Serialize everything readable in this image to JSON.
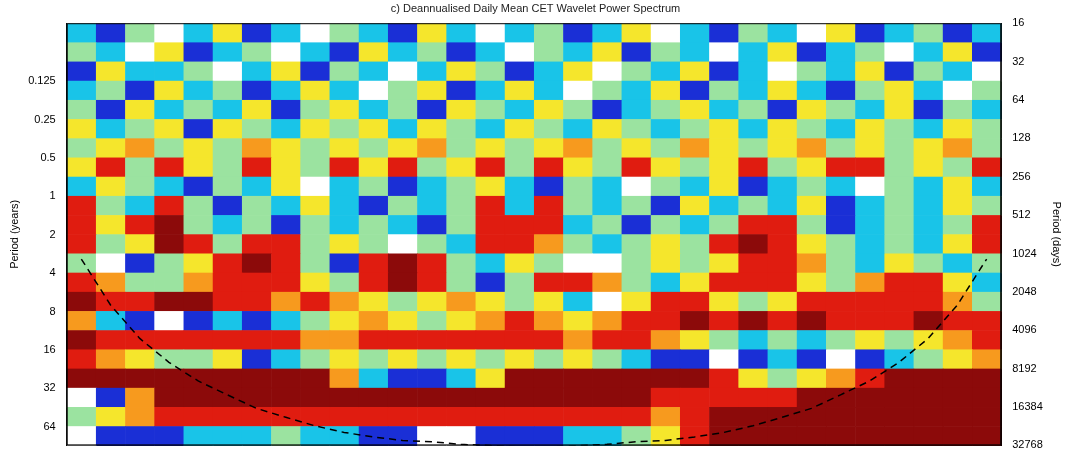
{
  "chart_data": {
    "type": "heatmap",
    "title": "c) Deannualised Daily Mean CET Wavelet Power Spectrum",
    "y_label": "Period (years)",
    "y2_label": "Period (days)",
    "log": "y",
    "grid": false,
    "tick_labels": "y",
    "xlim": [
      0,
      32
    ],
    "ylim": [
      0.04381,
      89.71
    ],
    "yticks": [
      0.125,
      0.25,
      0.5,
      1,
      2,
      4,
      8,
      16,
      32,
      64
    ],
    "y2lim": [
      16,
      32768
    ],
    "y2ticks": [
      16,
      32,
      64,
      128,
      256,
      512,
      1024,
      2048,
      4096,
      8192,
      16384,
      32768
    ],
    "x_edges": [
      0,
      1,
      2,
      3,
      4,
      5,
      6,
      7,
      8,
      9,
      10,
      11,
      12,
      13,
      14,
      15,
      16,
      17,
      18,
      19,
      20,
      21,
      22,
      23,
      24,
      25,
      26,
      27,
      28,
      29,
      30,
      31,
      32
    ],
    "y_edges": [
      0.04381,
      0.06195,
      0.08761,
      0.1239,
      0.1752,
      0.2478,
      0.3504,
      0.4956,
      0.7009,
      0.9912,
      1.402,
      1.982,
      2.804,
      3.965,
      5.607,
      7.93,
      11.21,
      15.86,
      22.43,
      31.72,
      44.86,
      63.44,
      89.71
    ],
    "clim": [
      0,
      7
    ],
    "colors": [
      "#ffffff",
      "#1a2fd6",
      "#19c4e8",
      "#9be3a0",
      "#f5e62c",
      "#f79a1e",
      "#e01c10",
      "#8c0a0a"
    ],
    "cells": [
      [
        2,
        1,
        3,
        0,
        2,
        4,
        1,
        2,
        0,
        3,
        2,
        1,
        4,
        2,
        0,
        2,
        3,
        1,
        2,
        4,
        0,
        2,
        1,
        3,
        2,
        0,
        4,
        1,
        2,
        3,
        1,
        2
      ],
      [
        3,
        2,
        0,
        4,
        1,
        2,
        3,
        0,
        2,
        1,
        4,
        2,
        3,
        1,
        2,
        0,
        3,
        2,
        4,
        1,
        3,
        2,
        0,
        2,
        4,
        1,
        2,
        3,
        0,
        2,
        4,
        1
      ],
      [
        1,
        4,
        2,
        2,
        3,
        0,
        2,
        4,
        1,
        3,
        2,
        0,
        2,
        4,
        3,
        1,
        2,
        4,
        0,
        3,
        2,
        4,
        1,
        2,
        0,
        3,
        2,
        4,
        1,
        3,
        2,
        0
      ],
      [
        2,
        3,
        1,
        4,
        2,
        3,
        1,
        2,
        4,
        2,
        0,
        3,
        4,
        1,
        2,
        4,
        2,
        0,
        3,
        2,
        4,
        1,
        3,
        2,
        4,
        2,
        1,
        3,
        4,
        2,
        0,
        3
      ],
      [
        3,
        1,
        4,
        2,
        3,
        2,
        4,
        1,
        3,
        4,
        2,
        3,
        1,
        4,
        3,
        2,
        4,
        3,
        1,
        2,
        3,
        4,
        2,
        3,
        1,
        4,
        3,
        2,
        4,
        1,
        3,
        2
      ],
      [
        4,
        2,
        3,
        4,
        1,
        4,
        3,
        2,
        4,
        3,
        4,
        2,
        4,
        3,
        2,
        4,
        3,
        2,
        4,
        3,
        2,
        3,
        4,
        2,
        4,
        3,
        2,
        4,
        3,
        2,
        4,
        3
      ],
      [
        3,
        4,
        5,
        3,
        4,
        3,
        5,
        4,
        3,
        4,
        3,
        4,
        5,
        3,
        4,
        3,
        4,
        5,
        3,
        4,
        3,
        5,
        4,
        3,
        4,
        5,
        3,
        4,
        3,
        4,
        5,
        3
      ],
      [
        4,
        6,
        3,
        6,
        4,
        3,
        6,
        4,
        3,
        6,
        4,
        6,
        3,
        4,
        6,
        3,
        6,
        4,
        3,
        6,
        4,
        3,
        4,
        6,
        3,
        4,
        6,
        6,
        3,
        4,
        3,
        6
      ],
      [
        2,
        4,
        3,
        2,
        1,
        3,
        2,
        4,
        0,
        2,
        3,
        1,
        2,
        3,
        4,
        2,
        1,
        3,
        2,
        0,
        3,
        2,
        4,
        1,
        2,
        3,
        2,
        0,
        3,
        2,
        4,
        2
      ],
      [
        6,
        3,
        2,
        6,
        3,
        1,
        3,
        2,
        4,
        2,
        1,
        3,
        2,
        3,
        6,
        2,
        6,
        3,
        2,
        3,
        1,
        4,
        2,
        3,
        2,
        4,
        1,
        2,
        3,
        2,
        4,
        3
      ],
      [
        6,
        4,
        6,
        7,
        3,
        2,
        3,
        1,
        3,
        2,
        3,
        2,
        1,
        3,
        6,
        6,
        6,
        2,
        3,
        1,
        3,
        2,
        3,
        6,
        6,
        3,
        1,
        2,
        3,
        2,
        3,
        6
      ],
      [
        6,
        3,
        4,
        7,
        6,
        3,
        6,
        6,
        3,
        4,
        3,
        0,
        3,
        2,
        6,
        6,
        5,
        3,
        2,
        3,
        4,
        3,
        6,
        7,
        6,
        4,
        3,
        2,
        3,
        2,
        4,
        6
      ],
      [
        3,
        0,
        1,
        3,
        4,
        6,
        7,
        6,
        3,
        1,
        6,
        7,
        6,
        3,
        2,
        4,
        3,
        0,
        0,
        3,
        4,
        3,
        4,
        6,
        6,
        5,
        3,
        2,
        4,
        3,
        2,
        3
      ],
      [
        6,
        5,
        3,
        3,
        5,
        6,
        6,
        6,
        4,
        3,
        6,
        7,
        6,
        3,
        1,
        3,
        6,
        6,
        5,
        3,
        2,
        4,
        6,
        6,
        6,
        4,
        3,
        5,
        6,
        6,
        4,
        2
      ],
      [
        7,
        6,
        6,
        7,
        7,
        6,
        6,
        5,
        6,
        5,
        4,
        3,
        4,
        5,
        4,
        3,
        4,
        2,
        0,
        4,
        6,
        6,
        4,
        3,
        4,
        6,
        6,
        6,
        6,
        6,
        5,
        3
      ],
      [
        5,
        2,
        1,
        0,
        1,
        2,
        1,
        2,
        3,
        4,
        5,
        4,
        3,
        4,
        5,
        6,
        5,
        4,
        5,
        6,
        6,
        7,
        6,
        7,
        6,
        7,
        6,
        6,
        6,
        7,
        6,
        6
      ],
      [
        7,
        6,
        6,
        6,
        6,
        6,
        6,
        6,
        5,
        5,
        6,
        6,
        6,
        6,
        6,
        6,
        6,
        5,
        6,
        6,
        5,
        4,
        3,
        2,
        3,
        2,
        3,
        4,
        3,
        4,
        5,
        6
      ],
      [
        6,
        5,
        4,
        3,
        3,
        4,
        1,
        2,
        3,
        4,
        3,
        4,
        3,
        4,
        3,
        4,
        3,
        4,
        3,
        2,
        1,
        1,
        0,
        1,
        2,
        1,
        0,
        1,
        2,
        3,
        4,
        5
      ],
      [
        7,
        7,
        7,
        7,
        7,
        7,
        7,
        7,
        7,
        5,
        2,
        1,
        1,
        2,
        4,
        7,
        7,
        7,
        7,
        7,
        7,
        7,
        6,
        4,
        3,
        4,
        5,
        6,
        7,
        7,
        7,
        7
      ],
      [
        0,
        1,
        5,
        7,
        7,
        7,
        7,
        7,
        7,
        7,
        7,
        7,
        7,
        7,
        7,
        7,
        7,
        7,
        7,
        7,
        6,
        6,
        6,
        6,
        6,
        7,
        7,
        7,
        7,
        7,
        7,
        7
      ],
      [
        3,
        4,
        5,
        6,
        6,
        6,
        6,
        6,
        6,
        6,
        6,
        6,
        6,
        6,
        6,
        6,
        6,
        6,
        6,
        6,
        5,
        6,
        7,
        7,
        7,
        7,
        7,
        7,
        7,
        7,
        7,
        7
      ],
      [
        0,
        1,
        1,
        1,
        2,
        2,
        2,
        3,
        2,
        2,
        1,
        1,
        0,
        0,
        1,
        1,
        1,
        2,
        2,
        3,
        4,
        6,
        7,
        7,
        7,
        7,
        7,
        7,
        7,
        7,
        7,
        7
      ]
    ],
    "coi": {
      "x": [
        0.5,
        1.5,
        2.5,
        3.5,
        4.5,
        5.5,
        6.5,
        7.5,
        8.5,
        9.5,
        10.5,
        11.5,
        12.5,
        13.5,
        14.5,
        15.5,
        16.5,
        17.5,
        18.5,
        19.5,
        20.5,
        21.5,
        22.5,
        23.5,
        24.5,
        25.5,
        26.5,
        27.5,
        28.5,
        29.5,
        30.5,
        31.5
      ],
      "values": [
        3.1,
        7.1,
        13,
        20,
        28,
        36,
        46,
        54,
        63,
        71,
        77,
        82,
        84,
        88,
        90,
        92,
        92,
        90,
        88,
        84,
        82,
        77,
        71,
        63,
        54,
        46,
        36,
        28,
        20,
        13,
        7.1,
        3.1
      ],
      "color": "#000000",
      "line_style": "dashed"
    }
  }
}
